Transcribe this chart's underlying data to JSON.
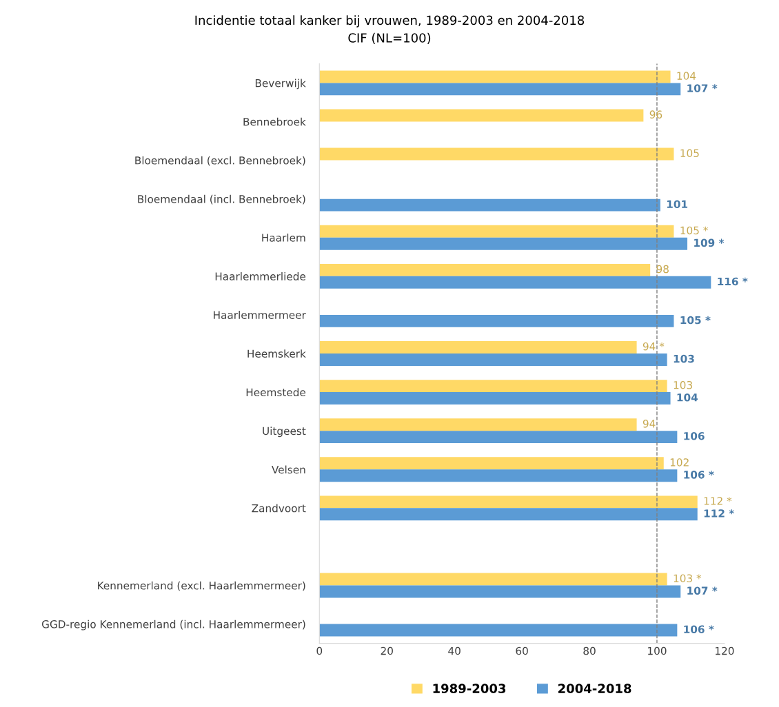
{
  "chart_data": {
    "type": "bar",
    "orientation": "horizontal",
    "title": "Incidentie totaal kanker bij vrouwen, 1989-2003 en 2004-2018",
    "subtitle": "CIF (NL=100)",
    "categories": [
      "Beverwijk",
      "Bennebroek",
      "Bloemendaal (excl. Bennebroek)",
      "Bloemendaal (incl. Bennebroek)",
      "Haarlem",
      "Haarlemmerliede",
      "Haarlemmermeer",
      "Heemskerk",
      "Heemstede",
      "Uitgeest",
      "Velsen",
      "Zandvoort",
      null,
      "Kennemerland (excl. Haarlemmermeer)",
      "GGD-regio Kennemerland (incl. Haarlemmermeer)"
    ],
    "series": [
      {
        "name": "1989-2003",
        "color": "#ffd966",
        "values": [
          104,
          96,
          105,
          null,
          105,
          98,
          null,
          94,
          103,
          94,
          102,
          112,
          null,
          103,
          null
        ],
        "value_labels": [
          "104",
          "96",
          "105",
          null,
          "105 *",
          "98",
          null,
          "94 *",
          "103",
          "94",
          "102",
          "112 *",
          null,
          "103 *",
          null
        ]
      },
      {
        "name": "2004-2018",
        "color": "#5b9bd5",
        "values": [
          107,
          null,
          null,
          101,
          109,
          116,
          105,
          103,
          104,
          106,
          106,
          112,
          null,
          107,
          106
        ],
        "value_labels": [
          "107 *",
          null,
          null,
          "101",
          "109 *",
          "116 *",
          "105 *",
          "103",
          "104",
          "106",
          "106 *",
          "112 *",
          null,
          "107 *",
          "106 *"
        ]
      }
    ],
    "xlim": [
      0,
      120
    ],
    "xticks": [
      0,
      20,
      40,
      60,
      80,
      100,
      120
    ],
    "ref_lines": [
      {
        "axis": "x",
        "value": 100,
        "label": null,
        "color": "#808080",
        "line_style": "dashed"
      }
    ],
    "grid": false,
    "legend": "bottom"
  }
}
